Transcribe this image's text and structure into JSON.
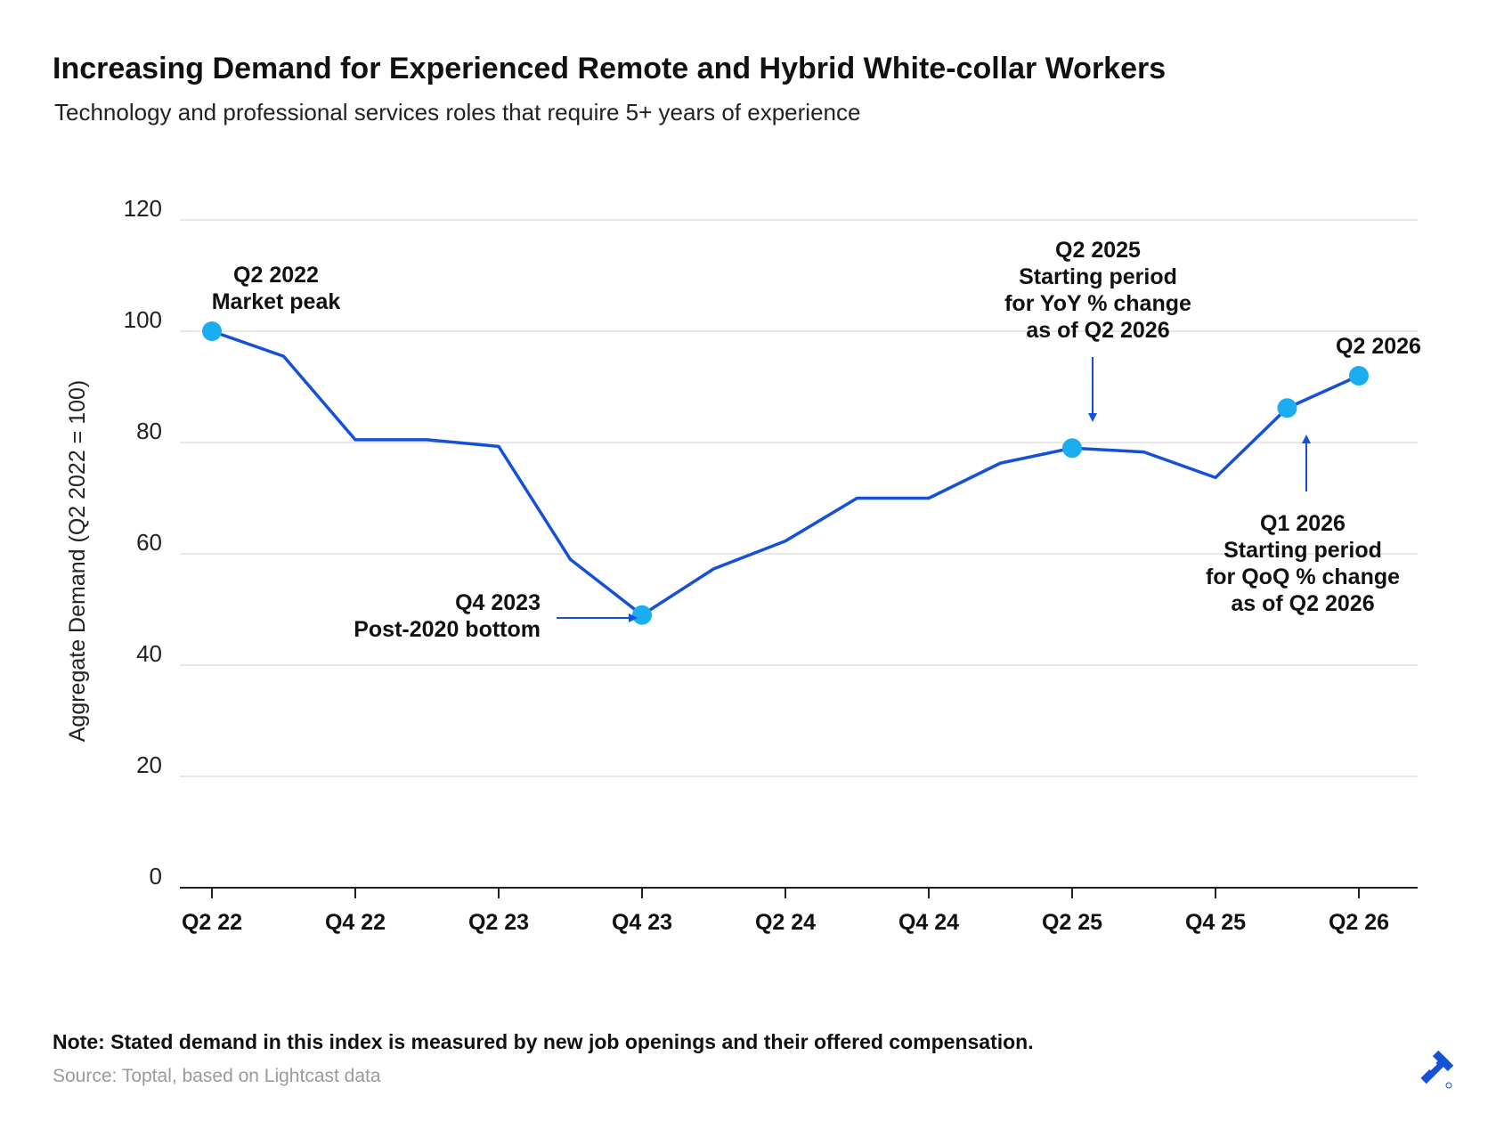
{
  "title": "Increasing Demand for Experienced Remote and Hybrid White-collar Workers",
  "subtitle": "Technology and professional services roles that require 5+ years of experience",
  "note": "Note: Stated demand in this index is measured by new job openings and their offered compensation.",
  "source": "Source: Toptal, based on Lightcast data",
  "colors": {
    "line": "#1550d8",
    "marker": "#1aaef0",
    "arrow": "#1550d8",
    "grid": "#d9d9d9",
    "axis": "#222222"
  },
  "logo_icon": "toptal-logo-icon",
  "chart_data": {
    "type": "line",
    "title": "Increasing Demand for Experienced Remote and Hybrid White-collar Workers",
    "subtitle": "Technology and professional services roles that require 5+ years of experience",
    "xlabel": "",
    "ylabel": "Aggregate Demand (Q2 2022 = 100)",
    "ylim": [
      0,
      120
    ],
    "yticks": [
      0,
      20,
      40,
      60,
      80,
      100,
      120
    ],
    "grid": true,
    "x": [
      "Q2 22",
      "Q3 22",
      "Q4 22",
      "Q1 23",
      "Q2 23",
      "Q3 23",
      "Q4 23",
      "Q1 24",
      "Q2 24",
      "Q3 24",
      "Q4 24",
      "Q1 25",
      "Q2 25",
      "Q3 25",
      "Q4 25",
      "Q1 26",
      "Q2 26"
    ],
    "xtick_labels": [
      "Q2 22",
      "Q4 22",
      "Q2 23",
      "Q4 23",
      "Q2 24",
      "Q4 24",
      "Q2 25",
      "Q4 25",
      "Q2 26"
    ],
    "series": [
      {
        "values": [
          100,
          95.5,
          80.5,
          80.5,
          79.3,
          59,
          49,
          57.3,
          62.3,
          70,
          70,
          76.3,
          79,
          78.3,
          73.7,
          86.2,
          92
        ]
      }
    ],
    "highlighted_points": [
      {
        "x": "Q2 22",
        "y": 100
      },
      {
        "x": "Q4 23",
        "y": 49
      },
      {
        "x": "Q2 25",
        "y": 79
      },
      {
        "x": "Q1 26",
        "y": 86.2
      },
      {
        "x": "Q2 26",
        "y": 92
      }
    ],
    "annotations": [
      {
        "target": "Q2 22",
        "lines": [
          "Q2 2022",
          "Market peak"
        ]
      },
      {
        "target": "Q4 23",
        "lines": [
          "Q4 2023",
          "Post-2020 bottom"
        ]
      },
      {
        "target": "Q2 25",
        "lines": [
          "Q2 2025",
          "Starting period",
          "for YoY % change",
          "as of Q2 2026"
        ]
      },
      {
        "target": "Q2 26",
        "lines": [
          "Q2 2026"
        ]
      },
      {
        "target": "Q1 26",
        "lines": [
          "Q1 2026",
          "Starting period",
          "for QoQ % change",
          "as of Q2 2026"
        ]
      }
    ]
  }
}
